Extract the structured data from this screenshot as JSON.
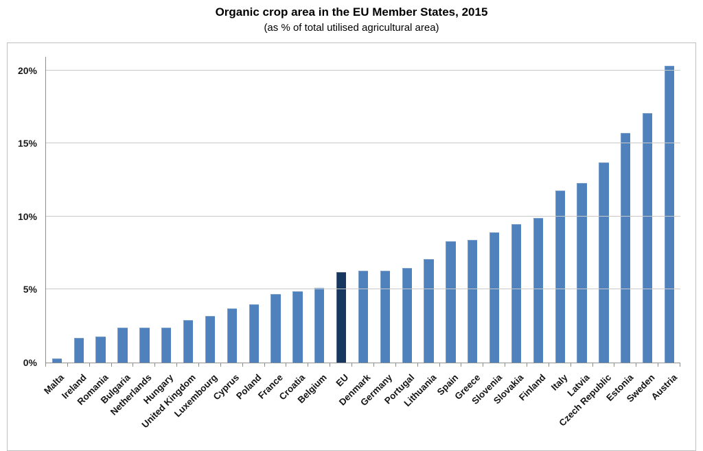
{
  "header": {
    "title": "Organic crop area in the EU Member States, 2015",
    "subtitle": "(as % of total utilised agricultural area)"
  },
  "chart_data": {
    "type": "bar",
    "title": "Organic crop area in the EU Member States, 2015",
    "subtitle": "(as % of total utilised agricultural area)",
    "categories": [
      "Malta",
      "Ireland",
      "Romania",
      "Bulgaria",
      "Netherlands",
      "Hungary",
      "United Kingdom",
      "Luxembourg",
      "Cyprus",
      "Poland",
      "France",
      "Croatia",
      "Belgium",
      "EU",
      "Denmark",
      "Germany",
      "Portugal",
      "Lithuania",
      "Spain",
      "Greece",
      "Slovenia",
      "Slovakia",
      "Finland",
      "Italy",
      "Latvia",
      "Czech Republic",
      "Estonia",
      "Sweden",
      "Austria"
    ],
    "values": [
      0.3,
      1.7,
      1.8,
      2.4,
      2.4,
      2.4,
      2.9,
      3.2,
      3.7,
      4.0,
      4.7,
      4.9,
      5.1,
      6.2,
      6.3,
      6.3,
      6.5,
      7.1,
      8.3,
      8.4,
      8.9,
      9.5,
      9.9,
      11.8,
      12.3,
      13.7,
      15.7,
      17.1,
      20.3
    ],
    "highlight_category": "EU",
    "xlabel": "",
    "ylabel": "",
    "yticks": [
      0,
      5,
      10,
      15,
      20
    ],
    "ytick_labels": [
      "0%",
      "5%",
      "10%",
      "15%",
      "20%"
    ],
    "ylim": [
      0,
      20.93
    ],
    "grid": "horizontal",
    "legend": "none",
    "colors": {
      "bar": "#4f81bd",
      "highlight_bar": "#17375e",
      "gridline": "#c9c9c9",
      "axis_line": "#8e8e8e",
      "chart_border": "#bfbfbf",
      "text": "#141414"
    }
  }
}
